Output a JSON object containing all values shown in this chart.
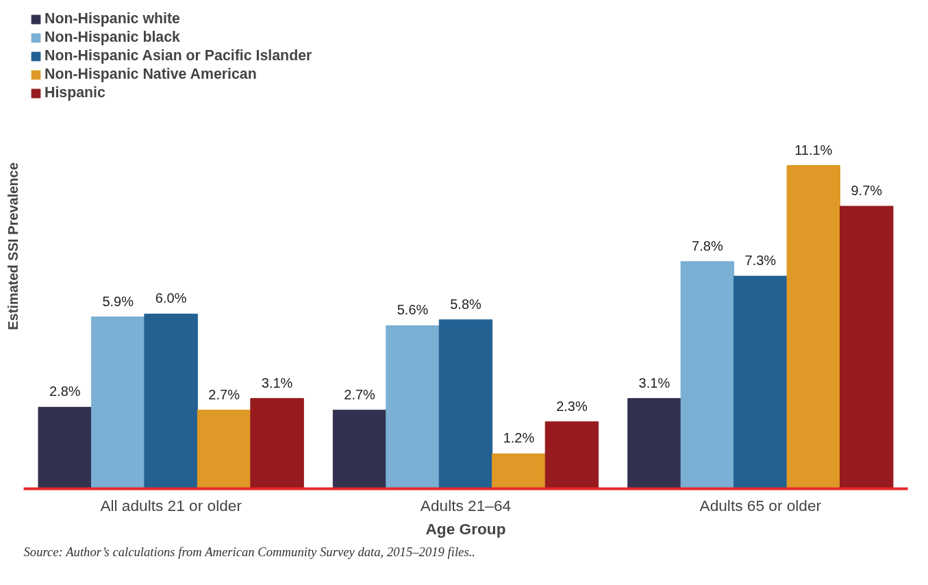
{
  "chart_data": {
    "type": "bar",
    "xlabel": "Age Group",
    "ylabel": "Estimated SSI Prevalence",
    "categories": [
      "All adults 21 or older",
      "Adults 21–64",
      "Adults 65 or older"
    ],
    "series": [
      {
        "name": "Non-Hispanic white",
        "color": "#333150",
        "values": [
          2.8,
          2.7,
          3.1
        ],
        "value_labels": [
          "2.8%",
          "2.7%",
          "3.1%"
        ]
      },
      {
        "name": "Non-Hispanic black",
        "color": "#7bafd4",
        "values": [
          5.9,
          5.6,
          7.8
        ],
        "value_labels": [
          "5.9%",
          "5.6%",
          "7.8%"
        ]
      },
      {
        "name": "Non-Hispanic Asian or Pacific Islander",
        "color": "#236192",
        "values": [
          6.0,
          5.8,
          7.3
        ],
        "value_labels": [
          "6.0%",
          "5.8%",
          "7.3%"
        ]
      },
      {
        "name": "Non-Hispanic Native American",
        "color": "#df9926",
        "values": [
          2.7,
          1.2,
          11.1
        ],
        "value_labels": [
          "2.7%",
          "1.2%",
          "11.1%"
        ]
      },
      {
        "name": "Hispanic",
        "color": "#961a1e",
        "values": [
          3.1,
          2.3,
          9.7
        ],
        "value_labels": [
          "3.1%",
          "2.3%",
          "9.7%"
        ]
      }
    ],
    "grid": false,
    "legend": "top left",
    "tick_labels": "x",
    "annotations": [
      "Source: Author’s calculations from American Community Survey data, 2015–2019 files.."
    ]
  }
}
